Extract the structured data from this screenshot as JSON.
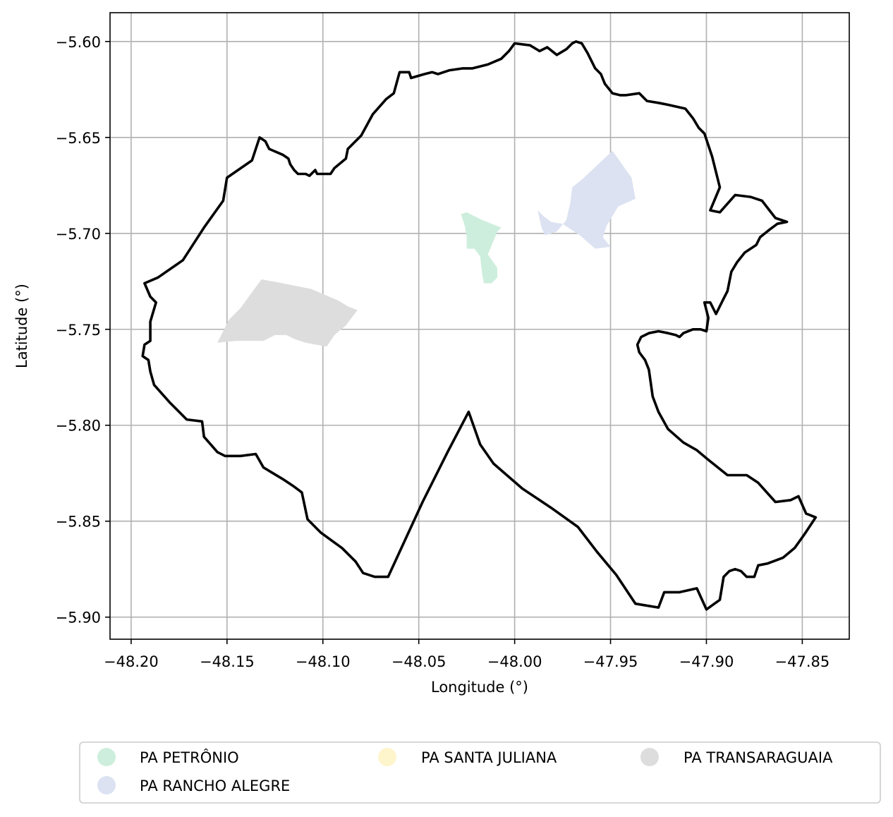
{
  "chart_data": {
    "type": "map",
    "xlabel": "Longitude (°)",
    "ylabel": "Latitude (°)",
    "xlim": [
      -48.211,
      -47.8255
    ],
    "ylim": [
      -5.9115,
      -5.585
    ],
    "grid": true,
    "x_ticks": [
      -48.2,
      -48.15,
      -48.1,
      -48.05,
      -48.0,
      -47.95,
      -47.9,
      -47.85
    ],
    "x_tick_labels": [
      "−48.20",
      "−48.15",
      "−48.10",
      "−48.05",
      "−48.00",
      "−47.95",
      "−47.90",
      "−47.85"
    ],
    "y_ticks": [
      -5.6,
      -5.65,
      -5.7,
      -5.75,
      -5.8,
      -5.85,
      -5.9
    ],
    "y_tick_labels": [
      "−5.60",
      "−5.65",
      "−5.70",
      "−5.75",
      "−5.80",
      "−5.85",
      "−5.90"
    ],
    "legend_placement": "bottom",
    "boundary": {
      "stroke": "#000000",
      "coords": [
        [
          -48.193,
          -5.726
        ],
        [
          -48.186,
          -5.723
        ],
        [
          -48.173,
          -5.714
        ],
        [
          -48.162,
          -5.697
        ],
        [
          -48.152,
          -5.683
        ],
        [
          -48.15,
          -5.671
        ],
        [
          -48.137,
          -5.662
        ],
        [
          -48.133,
          -5.65
        ],
        [
          -48.13,
          -5.652
        ],
        [
          -48.128,
          -5.656
        ],
        [
          -48.121,
          -5.659
        ],
        [
          -48.118,
          -5.661
        ],
        [
          -48.117,
          -5.664
        ],
        [
          -48.115,
          -5.667
        ],
        [
          -48.113,
          -5.669
        ],
        [
          -48.109,
          -5.669
        ],
        [
          -48.107,
          -5.67
        ],
        [
          -48.104,
          -5.667
        ],
        [
          -48.103,
          -5.669
        ],
        [
          -48.096,
          -5.669
        ],
        [
          -48.094,
          -5.666
        ],
        [
          -48.088,
          -5.661
        ],
        [
          -48.087,
          -5.656
        ],
        [
          -48.08,
          -5.649
        ],
        [
          -48.074,
          -5.638
        ],
        [
          -48.067,
          -5.63
        ],
        [
          -48.063,
          -5.627
        ],
        [
          -48.06,
          -5.616
        ],
        [
          -48.055,
          -5.616
        ],
        [
          -48.054,
          -5.619
        ],
        [
          -48.047,
          -5.617
        ],
        [
          -48.043,
          -5.616
        ],
        [
          -48.04,
          -5.617
        ],
        [
          -48.034,
          -5.615
        ],
        [
          -48.027,
          -5.614
        ],
        [
          -48.022,
          -5.614
        ],
        [
          -48.014,
          -5.612
        ],
        [
          -48.007,
          -5.609
        ],
        [
          -48.003,
          -5.605
        ],
        [
          -48.0,
          -5.601
        ],
        [
          -47.992,
          -5.602
        ],
        [
          -47.987,
          -5.605
        ],
        [
          -47.983,
          -5.603
        ],
        [
          -47.978,
          -5.607
        ],
        [
          -47.973,
          -5.604
        ],
        [
          -47.97,
          -5.601
        ],
        [
          -47.968,
          -5.6
        ],
        [
          -47.965,
          -5.601
        ],
        [
          -47.962,
          -5.606
        ],
        [
          -47.958,
          -5.614
        ],
        [
          -47.955,
          -5.617
        ],
        [
          -47.953,
          -5.622
        ],
        [
          -47.949,
          -5.627
        ],
        [
          -47.945,
          -5.628
        ],
        [
          -47.942,
          -5.628
        ],
        [
          -47.935,
          -5.627
        ],
        [
          -47.931,
          -5.631
        ],
        [
          -47.925,
          -5.632
        ],
        [
          -47.92,
          -5.633
        ],
        [
          -47.911,
          -5.635
        ],
        [
          -47.907,
          -5.64
        ],
        [
          -47.904,
          -5.645
        ],
        [
          -47.901,
          -5.648
        ],
        [
          -47.897,
          -5.66
        ],
        [
          -47.893,
          -5.676
        ],
        [
          -47.898,
          -5.688
        ],
        [
          -47.893,
          -5.689
        ],
        [
          -47.885,
          -5.68
        ],
        [
          -47.877,
          -5.681
        ],
        [
          -47.871,
          -5.683
        ],
        [
          -47.864,
          -5.692
        ],
        [
          -47.858,
          -5.694
        ],
        [
          -47.863,
          -5.695
        ],
        [
          -47.867,
          -5.698
        ],
        [
          -47.872,
          -5.702
        ],
        [
          -47.874,
          -5.706
        ],
        [
          -47.88,
          -5.71
        ],
        [
          -47.884,
          -5.715
        ],
        [
          -47.887,
          -5.72
        ],
        [
          -47.889,
          -5.73
        ],
        [
          -47.891,
          -5.734
        ],
        [
          -47.895,
          -5.742
        ],
        [
          -47.898,
          -5.736
        ],
        [
          -47.901,
          -5.736
        ],
        [
          -47.899,
          -5.744
        ],
        [
          -47.9,
          -5.751
        ],
        [
          -47.903,
          -5.75
        ],
        [
          -47.907,
          -5.75
        ],
        [
          -47.912,
          -5.752
        ],
        [
          -47.914,
          -5.754
        ],
        [
          -47.916,
          -5.753
        ],
        [
          -47.92,
          -5.752
        ],
        [
          -47.925,
          -5.751
        ],
        [
          -47.93,
          -5.752
        ],
        [
          -47.934,
          -5.754
        ],
        [
          -47.936,
          -5.758
        ],
        [
          -47.935,
          -5.762
        ],
        [
          -47.932,
          -5.766
        ],
        [
          -47.93,
          -5.771
        ],
        [
          -47.929,
          -5.778
        ],
        [
          -47.928,
          -5.785
        ],
        [
          -47.925,
          -5.793
        ],
        [
          -47.92,
          -5.802
        ],
        [
          -47.912,
          -5.809
        ],
        [
          -47.905,
          -5.813
        ],
        [
          -47.899,
          -5.818
        ],
        [
          -47.889,
          -5.826
        ],
        [
          -47.879,
          -5.826
        ],
        [
          -47.873,
          -5.83
        ],
        [
          -47.864,
          -5.84
        ],
        [
          -47.856,
          -5.839
        ],
        [
          -47.852,
          -5.837
        ],
        [
          -47.848,
          -5.846
        ],
        [
          -47.843,
          -5.848
        ],
        [
          -47.849,
          -5.857
        ],
        [
          -47.854,
          -5.864
        ],
        [
          -47.86,
          -5.869
        ],
        [
          -47.868,
          -5.872
        ],
        [
          -47.873,
          -5.873
        ],
        [
          -47.875,
          -5.879
        ],
        [
          -47.879,
          -5.879
        ],
        [
          -47.882,
          -5.876
        ],
        [
          -47.885,
          -5.875
        ],
        [
          -47.888,
          -5.876
        ],
        [
          -47.891,
          -5.879
        ],
        [
          -47.893,
          -5.891
        ],
        [
          -47.9,
          -5.896
        ],
        [
          -47.905,
          -5.885
        ],
        [
          -47.914,
          -5.887
        ],
        [
          -47.922,
          -5.887
        ],
        [
          -47.925,
          -5.895
        ],
        [
          -47.937,
          -5.893
        ],
        [
          -47.947,
          -5.878
        ],
        [
          -47.957,
          -5.866
        ],
        [
          -47.967,
          -5.853
        ],
        [
          -47.981,
          -5.843
        ],
        [
          -47.996,
          -5.833
        ],
        [
          -48.011,
          -5.82
        ],
        [
          -48.018,
          -5.81
        ],
        [
          -48.024,
          -5.793
        ],
        [
          -48.035,
          -5.814
        ],
        [
          -48.048,
          -5.84
        ],
        [
          -48.066,
          -5.879
        ],
        [
          -48.073,
          -5.879
        ],
        [
          -48.079,
          -5.877
        ],
        [
          -48.083,
          -5.871
        ],
        [
          -48.09,
          -5.864
        ],
        [
          -48.101,
          -5.856
        ],
        [
          -48.108,
          -5.849
        ],
        [
          -48.111,
          -5.835
        ],
        [
          -48.115,
          -5.832
        ],
        [
          -48.121,
          -5.828
        ],
        [
          -48.131,
          -5.822
        ],
        [
          -48.135,
          -5.815
        ],
        [
          -48.143,
          -5.816
        ],
        [
          -48.151,
          -5.816
        ],
        [
          -48.155,
          -5.814
        ],
        [
          -48.162,
          -5.806
        ],
        [
          -48.163,
          -5.798
        ],
        [
          -48.171,
          -5.797
        ],
        [
          -48.18,
          -5.788
        ],
        [
          -48.188,
          -5.779
        ],
        [
          -48.19,
          -5.772
        ],
        [
          -48.191,
          -5.766
        ],
        [
          -48.194,
          -5.764
        ],
        [
          -48.193,
          -5.758
        ],
        [
          -48.19,
          -5.756
        ],
        [
          -48.19,
          -5.746
        ],
        [
          -48.187,
          -5.736
        ],
        [
          -48.19,
          -5.733
        ],
        [
          -48.193,
          -5.726
        ]
      ]
    },
    "series": [
      {
        "name": "PA PETRÔNIO",
        "color": "#cdeedc",
        "coords": [
          [
            -48.028,
            -5.69
          ],
          [
            -48.025,
            -5.689
          ],
          [
            -48.017,
            -5.693
          ],
          [
            -48.007,
            -5.697
          ],
          [
            -48.009,
            -5.699
          ],
          [
            -48.014,
            -5.711
          ],
          [
            -48.009,
            -5.718
          ],
          [
            -48.009,
            -5.723
          ],
          [
            -48.012,
            -5.726
          ],
          [
            -48.016,
            -5.726
          ],
          [
            -48.017,
            -5.721
          ],
          [
            -48.018,
            -5.712
          ],
          [
            -48.021,
            -5.708
          ],
          [
            -48.025,
            -5.708
          ],
          [
            -48.025,
            -5.702
          ],
          [
            -48.026,
            -5.696
          ],
          [
            -48.028,
            -5.69
          ]
        ]
      },
      {
        "name": "PA RANCHO ALEGRE",
        "color": "#dce2f1",
        "coords": [
          [
            -47.988,
            -5.688
          ],
          [
            -47.986,
            -5.697
          ],
          [
            -47.984,
            -5.701
          ],
          [
            -47.978,
            -5.699
          ],
          [
            -47.973,
            -5.693
          ],
          [
            -47.971,
            -5.684
          ],
          [
            -47.97,
            -5.676
          ],
          [
            -47.965,
            -5.672
          ],
          [
            -47.949,
            -5.657
          ],
          [
            -47.939,
            -5.671
          ],
          [
            -47.937,
            -5.682
          ],
          [
            -47.946,
            -5.686
          ],
          [
            -47.952,
            -5.696
          ],
          [
            -47.954,
            -5.702
          ],
          [
            -47.95,
            -5.707
          ],
          [
            -47.958,
            -5.708
          ],
          [
            -47.966,
            -5.701
          ],
          [
            -47.975,
            -5.695
          ],
          [
            -47.981,
            -5.694
          ],
          [
            -47.985,
            -5.691
          ],
          [
            -47.988,
            -5.688
          ]
        ]
      },
      {
        "name": "PA SANTA JULIANA",
        "color": "#fff5cc",
        "coords": []
      },
      {
        "name": "PA TRANSARAGUAIA",
        "color": "#dddddd",
        "coords": [
          [
            -48.155,
            -5.757
          ],
          [
            -48.149,
            -5.745
          ],
          [
            -48.143,
            -5.739
          ],
          [
            -48.135,
            -5.728
          ],
          [
            -48.132,
            -5.724
          ],
          [
            -48.121,
            -5.726
          ],
          [
            -48.106,
            -5.729
          ],
          [
            -48.092,
            -5.735
          ],
          [
            -48.087,
            -5.738
          ],
          [
            -48.082,
            -5.74
          ],
          [
            -48.088,
            -5.748
          ],
          [
            -48.094,
            -5.753
          ],
          [
            -48.098,
            -5.759
          ],
          [
            -48.109,
            -5.757
          ],
          [
            -48.115,
            -5.755
          ],
          [
            -48.119,
            -5.753
          ],
          [
            -48.125,
            -5.753
          ],
          [
            -48.131,
            -5.756
          ],
          [
            -48.145,
            -5.756
          ],
          [
            -48.155,
            -5.757
          ]
        ]
      }
    ]
  }
}
